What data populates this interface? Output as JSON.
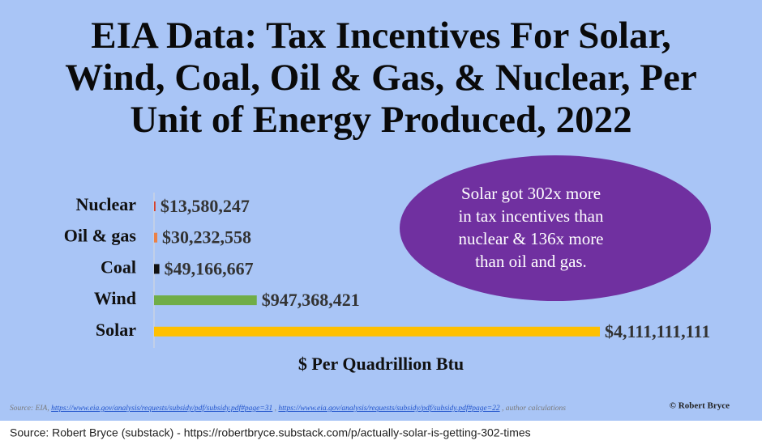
{
  "chart_data": {
    "type": "bar",
    "orientation": "horizontal",
    "title": [
      "EIA Data: Tax Incentives For Solar,",
      "Wind, Coal, Oil & Gas, & Nuclear, Per",
      "Unit of Energy Produced, 2022"
    ],
    "categories": [
      "Nuclear",
      "Oil & gas",
      "Coal",
      "Wind",
      "Solar"
    ],
    "values": [
      13580247,
      30232558,
      49166667,
      947368421,
      4111111111
    ],
    "value_labels": [
      "$13,580,247",
      "$30,232,558",
      "$49,166,667",
      "$947,368,421",
      "$4,111,111,111"
    ],
    "colors": [
      "#d6402a",
      "#eb8146",
      "#111111",
      "#70ad47",
      "#ffc000"
    ],
    "x_label": "$ Per Quadrillion Btu",
    "annotation": [
      "Solar got 302x more",
      "in tax incentives than",
      "nuclear & 136x more",
      "than oil and gas."
    ],
    "annotation_color": "#7030a0",
    "source": {
      "prefix": "Source: EIA,",
      "links": [
        "https://www.eia.gov/analysis/requests/subsidy/pdf/subsidy.pdf#page=31",
        "https://www.eia.gov/analysis/requests/subsidy/pdf/subsidy.pdf#page=22"
      ],
      "suffix": "author calculations"
    },
    "copyright": "© Robert Bryce",
    "footer": "Source: Robert Bryce (substack) -  https://robertbryce.substack.com/p/actually-solar-is-getting-302-times"
  }
}
